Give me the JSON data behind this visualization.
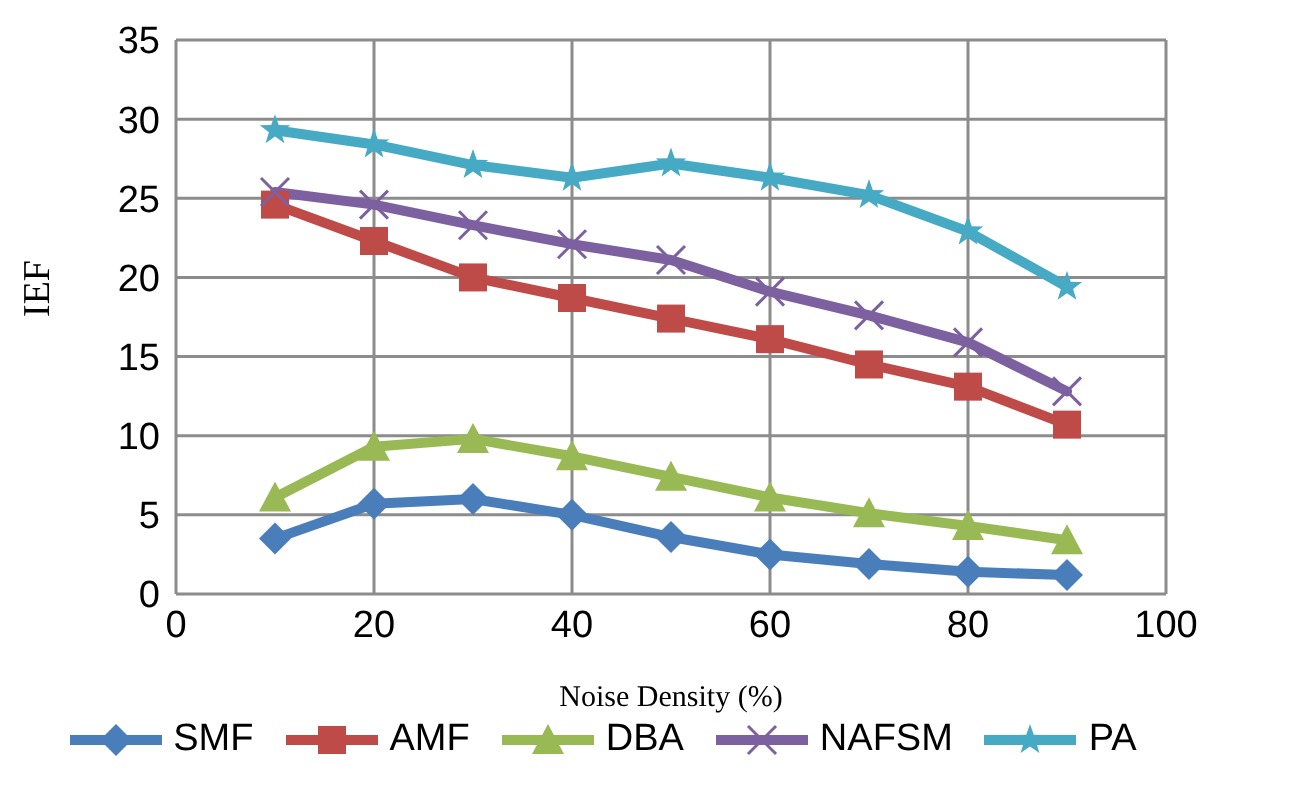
{
  "chart_data": {
    "type": "line",
    "xlabel": "Noise Density (%)",
    "ylabel": "IEF",
    "x": [
      10,
      20,
      30,
      40,
      50,
      60,
      70,
      80,
      90
    ],
    "series": [
      {
        "name": "SMF",
        "color": "#4a7ebb",
        "marker": "diamond",
        "values": [
          3.5,
          5.7,
          6.0,
          5.0,
          3.6,
          2.5,
          1.9,
          1.4,
          1.2
        ]
      },
      {
        "name": "AMF",
        "color": "#be4b48",
        "marker": "square",
        "values": [
          24.6,
          22.3,
          20.0,
          18.7,
          17.4,
          16.1,
          14.5,
          13.1,
          10.7
        ]
      },
      {
        "name": "DBA",
        "color": "#98b954",
        "marker": "triangle",
        "values": [
          6.1,
          9.3,
          9.8,
          8.7,
          7.4,
          6.1,
          5.1,
          4.3,
          3.4
        ]
      },
      {
        "name": "NAFSM",
        "color": "#7d60a0",
        "marker": "cross",
        "values": [
          25.4,
          24.6,
          23.3,
          22.1,
          21.1,
          19.1,
          17.6,
          15.9,
          12.8
        ]
      },
      {
        "name": "PA",
        "color": "#46aac5",
        "marker": "star",
        "values": [
          29.3,
          28.4,
          27.1,
          26.3,
          27.2,
          26.3,
          25.2,
          22.9,
          19.4
        ]
      }
    ],
    "xlim": [
      0,
      100
    ],
    "xticks": [
      0,
      20,
      40,
      60,
      80,
      100
    ],
    "ylim": [
      0,
      35
    ],
    "yticks": [
      0,
      5,
      10,
      15,
      20,
      25,
      30,
      35
    ],
    "grid": true,
    "legend": "bottom",
    "line_style": "solid"
  }
}
